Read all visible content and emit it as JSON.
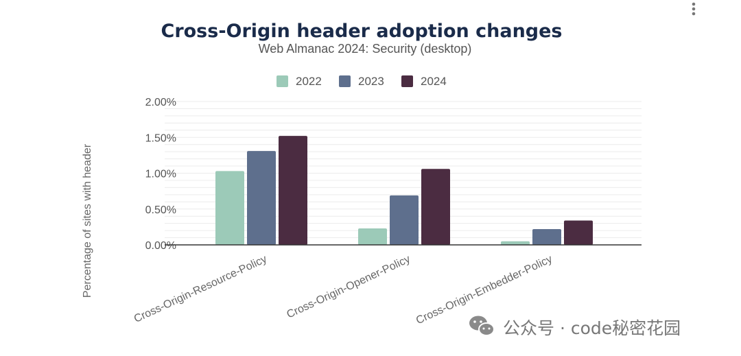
{
  "chart_data": {
    "type": "bar",
    "title": "Cross-Origin header adoption changes",
    "subtitle": "Web Almanac 2024: Security (desktop)",
    "xlabel": "",
    "ylabel": "Percentage of sites with header",
    "ylim": [
      0,
      2.0
    ],
    "yticks": [
      "0.00%",
      "0.50%",
      "1.00%",
      "1.50%",
      "2.00%"
    ],
    "ytick_values": [
      0,
      0.5,
      1.0,
      1.5,
      2.0
    ],
    "grid": true,
    "legend_position": "top-center",
    "categories": [
      "Cross-Origin-Resource-Policy",
      "Cross-Origin-Opener-Policy",
      "Cross-Origin-Embedder-Policy"
    ],
    "series": [
      {
        "name": "2022",
        "color": "#9ccab8",
        "values": [
          1.03,
          0.23,
          0.05
        ]
      },
      {
        "name": "2023",
        "color": "#5e6f8d",
        "values": [
          1.31,
          0.69,
          0.22
        ]
      },
      {
        "name": "2024",
        "color": "#4b2c41",
        "values": [
          1.52,
          1.06,
          0.34
        ]
      }
    ]
  },
  "menu_icon": "more-vertical-icon",
  "watermark": {
    "icon": "wechat-icon",
    "text": "公众号 · code秘密花园"
  }
}
